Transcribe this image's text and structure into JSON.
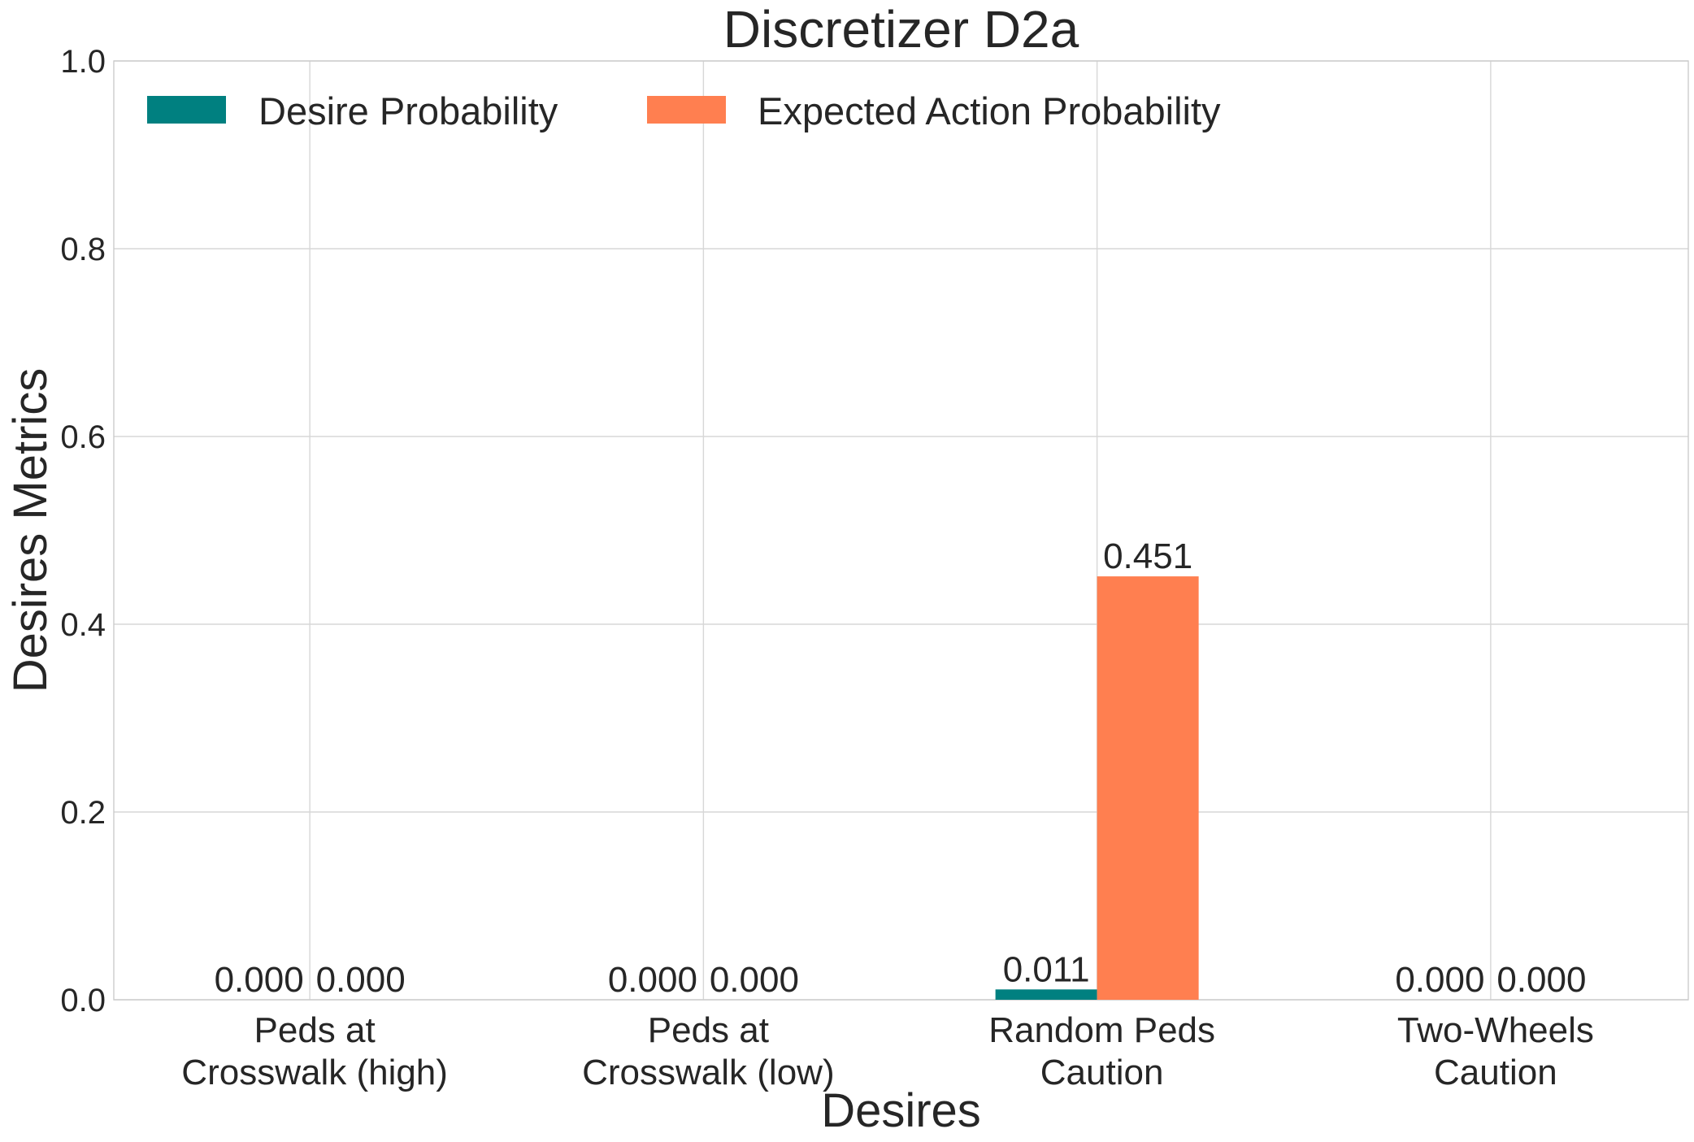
{
  "chart_data": {
    "type": "bar",
    "title": "Discretizer D2a",
    "xlabel": "Desires",
    "ylabel": "Desires Metrics",
    "ylim": [
      0,
      1.0
    ],
    "yticks": [
      "0.0",
      "0.2",
      "0.4",
      "0.6",
      "0.8",
      "1.0"
    ],
    "grid": true,
    "legend_position": "top-left",
    "categories": [
      [
        "Peds at",
        "Crosswalk (high)"
      ],
      [
        "Peds at",
        "Crosswalk (low)"
      ],
      [
        "Random Peds",
        "Caution"
      ],
      [
        "Two-Wheels",
        "Caution"
      ]
    ],
    "series": [
      {
        "name": "Desire Probability",
        "color": "#008080",
        "values": [
          0.0,
          0.0,
          0.011,
          0.0
        ],
        "labels": [
          "0.000",
          "0.000",
          "0.011",
          "0.000"
        ]
      },
      {
        "name": "Expected Action Probability",
        "color": "#ff7f50",
        "values": [
          0.0,
          0.0,
          0.451,
          0.0
        ],
        "labels": [
          "0.000",
          "0.000",
          "0.451",
          "0.000"
        ]
      }
    ]
  }
}
